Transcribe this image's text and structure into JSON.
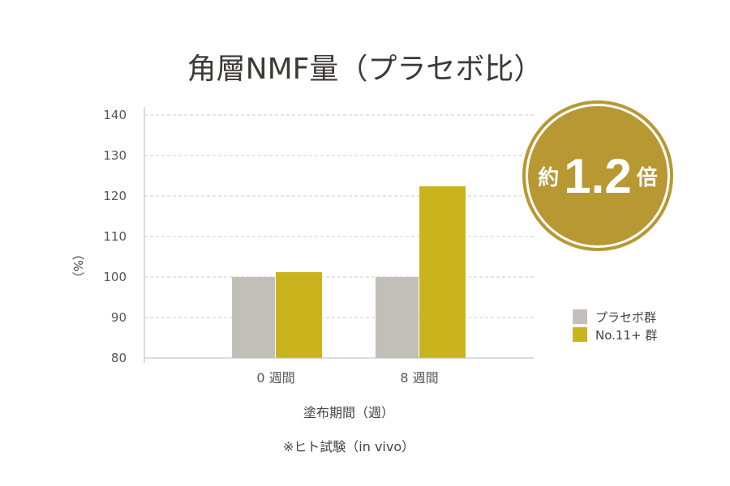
{
  "chart_data": {
    "type": "bar",
    "title": "角層NMF量（プラセボ比）",
    "categories": [
      "0 週間",
      "8 週間"
    ],
    "series": [
      {
        "name": "プラセボ群",
        "values": [
          100,
          100
        ],
        "color": "#c2bfba"
      },
      {
        "name": "No.11+ 群",
        "values": [
          101.2,
          122.4
        ],
        "color": "#c9b41e"
      }
    ],
    "xlabel": "塗布期間（週）",
    "ylabel": "（%）",
    "ylim": [
      80,
      140
    ],
    "yticks": [
      80,
      90,
      100,
      110,
      120,
      130,
      140
    ],
    "grid": true,
    "legend": "right",
    "annotation": {
      "prefix": "約",
      "value": "1.2",
      "suffix": "倍"
    },
    "note": "※ヒト試験（in vivo）"
  }
}
